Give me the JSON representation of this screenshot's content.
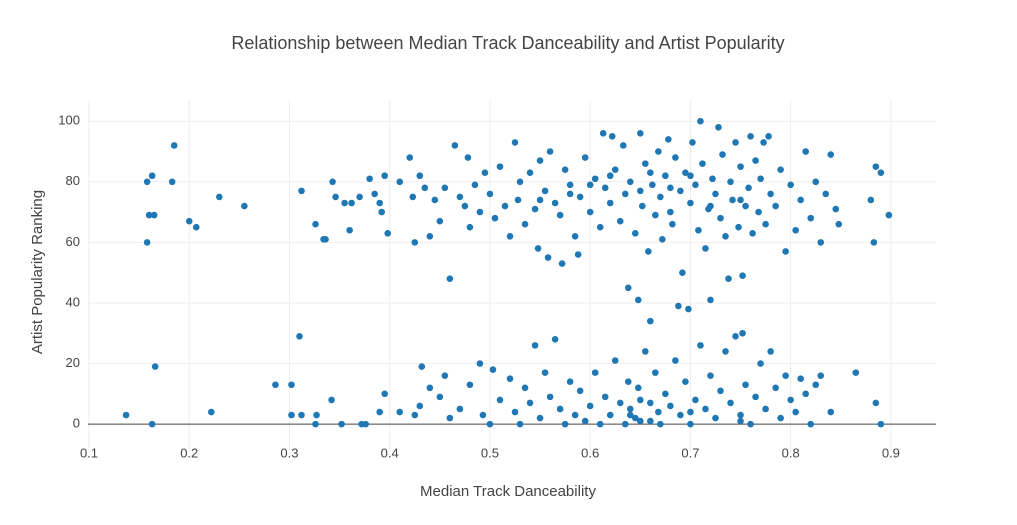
{
  "chart_data": {
    "type": "scatter",
    "title": "Relationship between Median Track Danceability and Artist Popularity",
    "x_label": "Median Track Danceability",
    "y_label": "Artist Popularity Ranking",
    "color": "#1f77b4",
    "grid": true,
    "xlim": [
      0.099,
      0.945
    ],
    "ylim": [
      -9.2,
      107
    ],
    "xticks": [
      0.1,
      0.2,
      0.3,
      0.4,
      0.5,
      0.6,
      0.7,
      0.8,
      0.9
    ],
    "yticks": [
      0,
      20,
      40,
      60,
      80,
      100
    ],
    "x": [
      0.137,
      0.158,
      0.163,
      0.16,
      0.165,
      0.158,
      0.185,
      0.183,
      0.2,
      0.207,
      0.23,
      0.255,
      0.166,
      0.163,
      0.222,
      0.286,
      0.302,
      0.302,
      0.31,
      0.312,
      0.312,
      0.326,
      0.327,
      0.326,
      0.334,
      0.336,
      0.343,
      0.346,
      0.342,
      0.352,
      0.355,
      0.36,
      0.362,
      0.37,
      0.372,
      0.376,
      0.38,
      0.385,
      0.39,
      0.392,
      0.395,
      0.398,
      0.41,
      0.42,
      0.423,
      0.425,
      0.43,
      0.435,
      0.44,
      0.445,
      0.45,
      0.455,
      0.46,
      0.465,
      0.47,
      0.475,
      0.478,
      0.48,
      0.485,
      0.49,
      0.495,
      0.5,
      0.505,
      0.51,
      0.515,
      0.52,
      0.525,
      0.528,
      0.53,
      0.535,
      0.54,
      0.545,
      0.548,
      0.55,
      0.555,
      0.558,
      0.56,
      0.565,
      0.57,
      0.572,
      0.575,
      0.58,
      0.585,
      0.588,
      0.59,
      0.595,
      0.6,
      0.605,
      0.61,
      0.613,
      0.615,
      0.62,
      0.622,
      0.625,
      0.63,
      0.633,
      0.635,
      0.638,
      0.64,
      0.645,
      0.648,
      0.65,
      0.652,
      0.655,
      0.658,
      0.66,
      0.662,
      0.665,
      0.668,
      0.67,
      0.672,
      0.675,
      0.678,
      0.68,
      0.682,
      0.685,
      0.688,
      0.69,
      0.692,
      0.695,
      0.698,
      0.7,
      0.702,
      0.705,
      0.708,
      0.71,
      0.712,
      0.715,
      0.718,
      0.72,
      0.722,
      0.725,
      0.728,
      0.73,
      0.732,
      0.735,
      0.738,
      0.74,
      0.742,
      0.745,
      0.748,
      0.75,
      0.752,
      0.755,
      0.758,
      0.76,
      0.762,
      0.765,
      0.768,
      0.77,
      0.773,
      0.775,
      0.778,
      0.78,
      0.785,
      0.79,
      0.795,
      0.8,
      0.805,
      0.81,
      0.815,
      0.82,
      0.825,
      0.83,
      0.835,
      0.84,
      0.845,
      0.848,
      0.88,
      0.883,
      0.885,
      0.89,
      0.898,
      0.55,
      0.6,
      0.65,
      0.7,
      0.75,
      0.62,
      0.68,
      0.72,
      0.58,
      0.66,
      0.39,
      0.395,
      0.41,
      0.425,
      0.43,
      0.432,
      0.44,
      0.45,
      0.455,
      0.46,
      0.47,
      0.48,
      0.49,
      0.493,
      0.5,
      0.503,
      0.51,
      0.52,
      0.525,
      0.53,
      0.535,
      0.54,
      0.545,
      0.55,
      0.555,
      0.56,
      0.565,
      0.57,
      0.575,
      0.58,
      0.585,
      0.59,
      0.595,
      0.6,
      0.605,
      0.61,
      0.615,
      0.62,
      0.625,
      0.63,
      0.635,
      0.638,
      0.64,
      0.645,
      0.648,
      0.65,
      0.655,
      0.66,
      0.665,
      0.668,
      0.67,
      0.675,
      0.68,
      0.685,
      0.69,
      0.695,
      0.7,
      0.705,
      0.71,
      0.715,
      0.72,
      0.725,
      0.73,
      0.735,
      0.74,
      0.745,
      0.75,
      0.752,
      0.755,
      0.76,
      0.765,
      0.77,
      0.775,
      0.78,
      0.785,
      0.79,
      0.795,
      0.8,
      0.805,
      0.81,
      0.815,
      0.82,
      0.825,
      0.83,
      0.84,
      0.865,
      0.885,
      0.89,
      0.64,
      0.66,
      0.7,
      0.75,
      0.65
    ],
    "values": [
      3,
      80,
      82,
      69,
      69,
      60,
      92,
      80,
      67,
      65,
      75,
      72,
      19,
      0,
      4,
      13,
      13,
      3,
      29,
      3,
      77,
      66,
      3,
      0,
      61,
      61,
      80,
      75,
      8,
      0,
      73,
      64,
      73,
      75,
      0,
      0,
      81,
      76,
      73,
      70,
      82,
      63,
      80,
      88,
      75,
      60,
      82,
      78,
      62,
      74,
      67,
      78,
      48,
      92,
      75,
      72,
      88,
      65,
      79,
      70,
      83,
      76,
      68,
      85,
      72,
      62,
      93,
      74,
      80,
      66,
      83,
      71,
      58,
      87,
      77,
      55,
      90,
      73,
      69,
      53,
      84,
      79,
      62,
      56,
      75,
      88,
      70,
      81,
      65,
      96,
      78,
      73,
      95,
      84,
      67,
      92,
      76,
      45,
      80,
      63,
      41,
      96,
      72,
      86,
      57,
      34,
      79,
      69,
      90,
      75,
      61,
      82,
      94,
      70,
      66,
      88,
      39,
      77,
      50,
      83,
      38,
      73,
      93,
      79,
      64,
      100,
      86,
      58,
      71,
      41,
      81,
      76,
      98,
      68,
      89,
      62,
      48,
      80,
      74,
      93,
      65,
      85,
      49,
      72,
      78,
      95,
      63,
      87,
      70,
      81,
      93,
      66,
      95,
      76,
      72,
      84,
      57,
      79,
      64,
      74,
      90,
      68,
      80,
      60,
      76,
      89,
      71,
      66,
      74,
      60,
      85,
      83,
      69,
      74,
      79,
      77,
      82,
      74,
      82,
      78,
      72,
      76,
      83,
      4,
      10,
      4,
      3,
      6,
      19,
      12,
      9,
      16,
      2,
      5,
      13,
      20,
      3,
      0,
      18,
      8,
      15,
      4,
      0,
      12,
      7,
      26,
      2,
      17,
      9,
      28,
      5,
      0,
      14,
      3,
      11,
      1,
      6,
      17,
      0,
      9,
      3,
      21,
      7,
      0,
      14,
      5,
      2,
      12,
      8,
      24,
      1,
      17,
      4,
      0,
      10,
      6,
      21,
      3,
      14,
      0,
      8,
      26,
      5,
      16,
      2,
      11,
      24,
      7,
      29,
      3,
      30,
      13,
      0,
      9,
      20,
      5,
      24,
      12,
      2,
      16,
      8,
      4,
      15,
      10,
      0,
      13,
      16,
      4,
      17,
      7,
      0,
      3,
      7,
      4,
      1,
      1
    ]
  }
}
